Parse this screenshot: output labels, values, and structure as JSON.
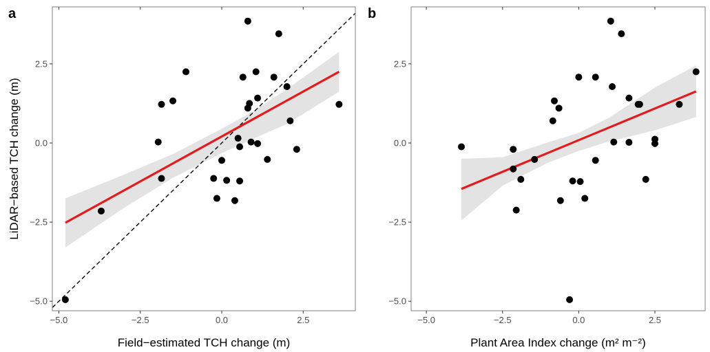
{
  "colors": {
    "points": "#000000",
    "fit_line": "#e41a1c",
    "ci_band": "#d9d9d9",
    "panel_border": "#7f7f7f",
    "identity_line": "#000000"
  },
  "chart_data": [
    {
      "type": "scatter",
      "panel_tag": "a",
      "xlabel": "Field−estimated TCH change (m)",
      "ylabel": "LiDAR−based TCH change (m)",
      "xlim": [
        -5.2,
        4.1
      ],
      "ylim": [
        -5.3,
        4.3
      ],
      "xticks": [
        -5.0,
        -2.5,
        0.0,
        2.5
      ],
      "xtick_labels": [
        "−5.0",
        "−2.5",
        "0.0",
        "2.5"
      ],
      "yticks": [
        -5.0,
        -2.5,
        0.0,
        2.5
      ],
      "ytick_labels": [
        "−5.0",
        "−2.5",
        "0.0",
        "2.5"
      ],
      "grid": false,
      "legend": "none",
      "identity_line": true,
      "points": [
        {
          "x": -4.8,
          "y": -4.95
        },
        {
          "x": -3.7,
          "y": -2.15
        },
        {
          "x": -1.95,
          "y": 0.03
        },
        {
          "x": -1.85,
          "y": 1.22
        },
        {
          "x": -1.85,
          "y": -1.12
        },
        {
          "x": -1.5,
          "y": 1.33
        },
        {
          "x": -1.1,
          "y": 2.25
        },
        {
          "x": -0.25,
          "y": -1.12
        },
        {
          "x": -0.15,
          "y": -1.75
        },
        {
          "x": 0.0,
          "y": -0.55
        },
        {
          "x": 0.15,
          "y": -1.18
        },
        {
          "x": 0.4,
          "y": -1.82
        },
        {
          "x": 0.5,
          "y": 0.15
        },
        {
          "x": 0.55,
          "y": -0.12
        },
        {
          "x": 0.55,
          "y": -1.2
        },
        {
          "x": 0.65,
          "y": 2.08
        },
        {
          "x": 0.8,
          "y": 3.85
        },
        {
          "x": 0.8,
          "y": 1.1
        },
        {
          "x": 0.85,
          "y": 1.25
        },
        {
          "x": 0.9,
          "y": 0.03
        },
        {
          "x": 1.05,
          "y": 2.25
        },
        {
          "x": 1.1,
          "y": 1.42
        },
        {
          "x": 1.1,
          "y": -0.02
        },
        {
          "x": 1.4,
          "y": -0.52
        },
        {
          "x": 1.6,
          "y": 2.08
        },
        {
          "x": 1.75,
          "y": 3.45
        },
        {
          "x": 2.0,
          "y": 1.78
        },
        {
          "x": 2.1,
          "y": 0.7
        },
        {
          "x": 2.3,
          "y": -0.2
        },
        {
          "x": 3.6,
          "y": 1.22
        }
      ],
      "fit": {
        "x0": -4.8,
        "y0": -2.52,
        "x1": 3.6,
        "y1": 2.25
      },
      "ci_band": [
        {
          "x": -4.8,
          "lo": -3.3,
          "hi": -1.75
        },
        {
          "x": -3.0,
          "lo": -2.05,
          "hi": -1.0
        },
        {
          "x": -1.5,
          "lo": -1.1,
          "hi": -0.35
        },
        {
          "x": 0.0,
          "lo": -0.32,
          "hi": 0.45
        },
        {
          "x": 1.0,
          "lo": 0.15,
          "hi": 1.02
        },
        {
          "x": 2.0,
          "lo": 0.6,
          "hi": 1.7
        },
        {
          "x": 3.6,
          "lo": 1.62,
          "hi": 2.88
        }
      ]
    },
    {
      "type": "scatter",
      "panel_tag": "b",
      "xlabel": "Plant Area Index change  (m² m⁻²)",
      "ylabel": "",
      "xlim": [
        -5.5,
        4.15
      ],
      "ylim": [
        -5.3,
        4.3
      ],
      "xticks": [
        -5.0,
        -2.5,
        0.0,
        2.5
      ],
      "xtick_labels": [
        "−5.0",
        "−2.5",
        "0.0",
        "2.5"
      ],
      "yticks": [
        -5.0,
        -2.5,
        0.0,
        2.5
      ],
      "ytick_labels": [
        "−5.0",
        "−2.5",
        "0.0",
        "2.5"
      ],
      "grid": false,
      "legend": "none",
      "identity_line": false,
      "points": [
        {
          "x": -3.85,
          "y": -0.12
        },
        {
          "x": -2.15,
          "y": -0.2
        },
        {
          "x": -2.15,
          "y": -0.82
        },
        {
          "x": -2.05,
          "y": -2.12
        },
        {
          "x": -1.9,
          "y": -1.15
        },
        {
          "x": -1.45,
          "y": -0.52
        },
        {
          "x": -0.85,
          "y": 0.7
        },
        {
          "x": -0.8,
          "y": 1.33
        },
        {
          "x": -0.65,
          "y": 1.1
        },
        {
          "x": -0.6,
          "y": -1.82
        },
        {
          "x": -0.3,
          "y": -4.95
        },
        {
          "x": -0.2,
          "y": -1.2
        },
        {
          "x": 0.0,
          "y": 2.08
        },
        {
          "x": 0.05,
          "y": -1.22
        },
        {
          "x": 0.2,
          "y": -1.75
        },
        {
          "x": 0.55,
          "y": 2.08
        },
        {
          "x": 0.55,
          "y": -0.55
        },
        {
          "x": 1.05,
          "y": 3.85
        },
        {
          "x": 1.1,
          "y": 1.78
        },
        {
          "x": 1.15,
          "y": 0.03
        },
        {
          "x": 1.4,
          "y": 3.45
        },
        {
          "x": 1.65,
          "y": 1.42
        },
        {
          "x": 1.65,
          "y": 0.02
        },
        {
          "x": 1.95,
          "y": 1.22
        },
        {
          "x": 2.0,
          "y": 1.22
        },
        {
          "x": 2.2,
          "y": -1.15
        },
        {
          "x": 2.5,
          "y": 0.12
        },
        {
          "x": 2.5,
          "y": -0.02
        },
        {
          "x": 3.3,
          "y": 1.22
        },
        {
          "x": 3.85,
          "y": 2.25
        }
      ],
      "fit": {
        "x0": -3.85,
        "y0": -1.45,
        "x1": 3.85,
        "y1": 1.63
      },
      "ci_band": [
        {
          "x": -3.85,
          "lo": -2.45,
          "hi": -0.5
        },
        {
          "x": -2.5,
          "lo": -1.35,
          "hi": -0.45
        },
        {
          "x": -1.0,
          "lo": -0.62,
          "hi": 0.02
        },
        {
          "x": 0.0,
          "lo": -0.25,
          "hi": 0.32
        },
        {
          "x": 1.0,
          "lo": 0.05,
          "hi": 0.8
        },
        {
          "x": 2.5,
          "lo": 0.4,
          "hi": 1.75
        },
        {
          "x": 3.85,
          "lo": 0.82,
          "hi": 2.45
        }
      ]
    }
  ]
}
